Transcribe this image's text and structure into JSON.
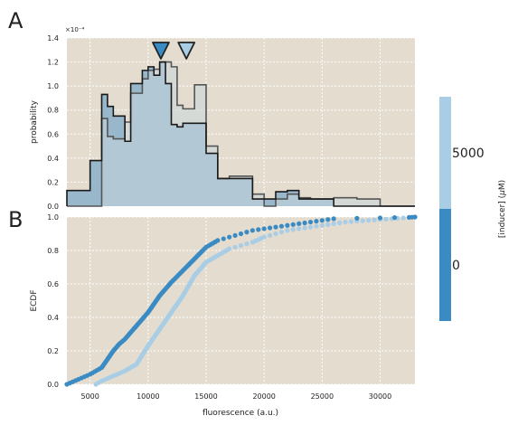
{
  "panel_labels": {
    "a": "A",
    "b": "B"
  },
  "colors": {
    "bg": "#e3dccf",
    "grid": "#ffffff",
    "dark": "#3a8bc3",
    "light": "#a8cde5",
    "hist_fill_0": "#8fb2c9",
    "hist_fill_5000": "#c8d7dc",
    "edge": "#1a1a1a"
  },
  "colorbar": {
    "label": "[inducer] (μM)",
    "label_parts": {
      "prefix": "[inducer] (",
      "mu": "μ",
      "suffix": "M)"
    },
    "categories": [
      {
        "name": "0",
        "color": "#3a8bc3"
      },
      {
        "name": "5000",
        "color": "#a8cde5"
      }
    ]
  },
  "chart_data": [
    {
      "type": "area",
      "ylabel": "probability",
      "y_scale_label": "×10⁻⁴",
      "xlim": [
        3000,
        33000
      ],
      "ylim": [
        0,
        1.4
      ],
      "y_ticks": [
        "0.0",
        "0.2",
        "0.4",
        "0.6",
        "0.8",
        "1.0",
        "1.2",
        "1.4"
      ],
      "bin_edges": [
        3000,
        4000,
        5000,
        6000,
        6500,
        7000,
        8000,
        8500,
        9000,
        9500,
        10000,
        10500,
        11000,
        11500,
        12000,
        12500,
        13000,
        14000,
        15000,
        16000,
        17000,
        17500,
        18000,
        19000,
        20000,
        21000,
        22000,
        23000,
        24000,
        25000,
        26000,
        28000,
        30000,
        31000,
        32000,
        33000
      ],
      "series": [
        {
          "name": "0",
          "values": [
            0.13,
            0.13,
            0.38,
            0.93,
            0.83,
            0.75,
            0.54,
            1.02,
            1.02,
            1.13,
            1.16,
            1.09,
            1.2,
            1.02,
            0.68,
            0.66,
            0.69,
            0.69,
            0.44,
            0.23,
            0.23,
            0.23,
            0.23,
            0.06,
            0.06,
            0.12,
            0.13,
            0.06,
            0.06,
            0.06,
            0.0,
            0.0,
            0.0,
            0.0,
            0.0
          ]
        },
        {
          "name": "5000",
          "values": [
            0.0,
            0.0,
            0.0,
            0.73,
            0.58,
            0.56,
            0.7,
            0.94,
            0.94,
            1.06,
            1.13,
            1.14,
            1.2,
            1.2,
            1.16,
            0.84,
            0.81,
            1.01,
            0.5,
            0.23,
            0.25,
            0.25,
            0.25,
            0.1,
            0.0,
            0.06,
            0.1,
            0.07,
            0.06,
            0.06,
            0.07,
            0.06,
            0.0,
            0.0,
            0.0
          ]
        }
      ],
      "markers": [
        {
          "series": "0",
          "x": 11100
        },
        {
          "series": "5000",
          "x": 13300
        }
      ],
      "x_grid": [
        5000,
        10000,
        15000,
        20000,
        25000,
        30000
      ],
      "grid": true
    },
    {
      "type": "scatter",
      "xlabel": "fluorescence (a.u.)",
      "ylabel": "ECDF",
      "xlim": [
        3000,
        33000
      ],
      "ylim": [
        0,
        1.0
      ],
      "x_ticks": [
        "5000",
        "10000",
        "15000",
        "20000",
        "25000",
        "30000"
      ],
      "y_ticks": [
        "0.0",
        "0.2",
        "0.4",
        "0.6",
        "0.8",
        "1.0"
      ],
      "series": [
        {
          "name": "0",
          "x": [
            3000,
            4000,
            5000,
            6000,
            6500,
            7000,
            7500,
            8000,
            9000,
            10000,
            11000,
            12000,
            13000,
            14000,
            15000,
            16000,
            17000,
            18000,
            19000,
            20000,
            21000,
            22000,
            23000,
            24000,
            25000,
            26000,
            30000,
            32500,
            33000
          ],
          "y": [
            0.0,
            0.03,
            0.06,
            0.1,
            0.15,
            0.2,
            0.24,
            0.27,
            0.35,
            0.43,
            0.53,
            0.61,
            0.68,
            0.75,
            0.82,
            0.86,
            0.88,
            0.9,
            0.92,
            0.93,
            0.94,
            0.95,
            0.96,
            0.97,
            0.98,
            0.99,
            0.995,
            0.998,
            1.0
          ]
        },
        {
          "name": "5000",
          "x": [
            5500,
            6000,
            7000,
            8000,
            9000,
            10000,
            11000,
            12000,
            13000,
            14000,
            15000,
            16000,
            17000,
            18000,
            19000,
            20000,
            21000,
            22000,
            23000,
            24000,
            25000,
            26000,
            27000,
            28000,
            29000,
            30000,
            31000,
            32000,
            33000
          ],
          "y": [
            0.0,
            0.02,
            0.05,
            0.08,
            0.12,
            0.23,
            0.33,
            0.43,
            0.53,
            0.65,
            0.73,
            0.77,
            0.81,
            0.83,
            0.85,
            0.88,
            0.9,
            0.92,
            0.93,
            0.94,
            0.95,
            0.96,
            0.97,
            0.975,
            0.98,
            0.985,
            0.99,
            0.995,
            1.0
          ]
        }
      ],
      "x_grid": [
        5000,
        10000,
        15000,
        20000,
        25000,
        30000
      ],
      "grid": true
    }
  ]
}
